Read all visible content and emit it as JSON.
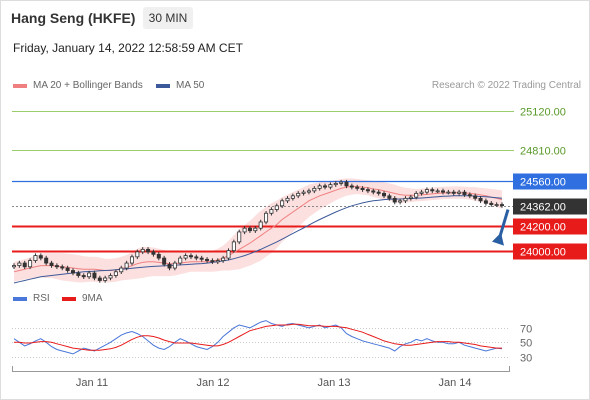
{
  "header": {
    "title": "Hang Seng (HKFE)",
    "interval": "30 MIN",
    "datetime": "Friday, January 14, 2022 12:58:59 AM CET",
    "credit": "Research © 2022 Trading Central"
  },
  "legend": {
    "ma20_bb": "MA 20 + Bollinger Bands",
    "ma50": "MA 50",
    "rsi": "RSI",
    "rsi_ma": "9MA"
  },
  "colors": {
    "ma20": "#f08080",
    "ma50": "#3c5a99",
    "band_fill": "#fbd7d7",
    "resistance_green": "#9acd6e",
    "resistance_blue": "#2f6fe0",
    "support_red": "#e81b1b",
    "current_tag": "#333333",
    "arrow": "#2b5fa3",
    "rsi": "#4a77d9",
    "rsi_ma": "#e81b1b"
  },
  "chart_data": [
    {
      "type": "candlestick",
      "x_labels": [
        "Jan 11",
        "Jan 12",
        "Jan 13",
        "Jan 14"
      ],
      "ylim": [
        23780,
        25210
      ],
      "levels": [
        {
          "value": 25120,
          "label": "25120.00",
          "style": "green"
        },
        {
          "value": 24810,
          "label": "24810.00",
          "style": "green"
        },
        {
          "value": 24560,
          "label": "24560.00",
          "style": "blue-tag"
        },
        {
          "value": 24362,
          "label": "24362.00",
          "style": "current-tag"
        },
        {
          "value": 24200,
          "label": "24200.00",
          "style": "red-tag"
        },
        {
          "value": 24000,
          "label": "24000.00",
          "style": "red-tag"
        }
      ],
      "close": [
        23880,
        23900,
        23870,
        23920,
        23960,
        23940,
        23900,
        23880,
        23870,
        23860,
        23840,
        23820,
        23800,
        23790,
        23820,
        23780,
        23760,
        23780,
        23800,
        23830,
        23860,
        23900,
        23950,
        23990,
        24010,
        23990,
        23970,
        23940,
        23890,
        23860,
        23900,
        23940,
        23960,
        23950,
        23940,
        23930,
        23920,
        23910,
        23920,
        23940,
        24000,
        24070,
        24150,
        24180,
        24160,
        24180,
        24230,
        24300,
        24330,
        24360,
        24400,
        24420,
        24440,
        24460,
        24470,
        24480,
        24500,
        24520,
        24510,
        24530,
        24540,
        24550,
        24520,
        24510,
        24500,
        24490,
        24480,
        24470,
        24460,
        24440,
        24420,
        24390,
        24400,
        24420,
        24430,
        24460,
        24470,
        24490,
        24480,
        24480,
        24470,
        24470,
        24460,
        24470,
        24450,
        24440,
        24420,
        24400,
        24380,
        24370,
        24370,
        24362
      ],
      "ma20": [
        23830,
        23840,
        23850,
        23860,
        23870,
        23880,
        23880,
        23880,
        23875,
        23870,
        23865,
        23860,
        23855,
        23850,
        23850,
        23850,
        23845,
        23840,
        23840,
        23845,
        23855,
        23865,
        23880,
        23895,
        23905,
        23910,
        23910,
        23905,
        23900,
        23895,
        23895,
        23900,
        23905,
        23910,
        23910,
        23910,
        23910,
        23915,
        23925,
        23940,
        23960,
        23985,
        24010,
        24035,
        24060,
        24090,
        24120,
        24150,
        24180,
        24210,
        24250,
        24280,
        24310,
        24340,
        24370,
        24400,
        24420,
        24440,
        24455,
        24470,
        24485,
        24500,
        24510,
        24515,
        24515,
        24510,
        24505,
        24495,
        24490,
        24480,
        24470,
        24460,
        24450,
        24445,
        24445,
        24445,
        24448,
        24452,
        24456,
        24460,
        24463,
        24465,
        24466,
        24466,
        24464,
        24460,
        24455,
        24448,
        24440,
        24430,
        24420,
        24410
      ],
      "ma50": [
        23740,
        23750,
        23760,
        23770,
        23780,
        23790,
        23795,
        23800,
        23805,
        23810,
        23815,
        23820,
        23825,
        23830,
        23832,
        23835,
        23838,
        23840,
        23843,
        23846,
        23850,
        23853,
        23858,
        23862,
        23866,
        23870,
        23873,
        23876,
        23878,
        23880,
        23882,
        23885,
        23888,
        23890,
        23893,
        23896,
        23900,
        23905,
        23910,
        23917,
        23925,
        23935,
        23947,
        23960,
        23975,
        23992,
        24010,
        24030,
        24050,
        24070,
        24092,
        24115,
        24138,
        24160,
        24182,
        24205,
        24228,
        24250,
        24270,
        24290,
        24310,
        24328,
        24345,
        24360,
        24372,
        24383,
        24393,
        24400,
        24405,
        24410,
        24412,
        24414,
        24415,
        24416,
        24418,
        24420,
        24423,
        24426,
        24430,
        24433,
        24436,
        24438,
        24440,
        24441,
        24441,
        24440,
        24438,
        24435,
        24432,
        24428,
        24424,
        24420
      ],
      "band_width": [
        80,
        80,
        80,
        85,
        90,
        95,
        100,
        100,
        105,
        110,
        110,
        110,
        110,
        105,
        100,
        100,
        100,
        95,
        95,
        95,
        95,
        100,
        110,
        120,
        125,
        120,
        115,
        110,
        105,
        100,
        95,
        90,
        85,
        80,
        80,
        80,
        80,
        85,
        90,
        100,
        120,
        140,
        160,
        170,
        180,
        190,
        200,
        200,
        200,
        190,
        180,
        170,
        160,
        150,
        140,
        130,
        120,
        110,
        100,
        90,
        80,
        75,
        70,
        65,
        60,
        60,
        60,
        65,
        70,
        70,
        70,
        70,
        65,
        60,
        55,
        50,
        50,
        50,
        50,
        50,
        50,
        50,
        50,
        50,
        50,
        50,
        55,
        55,
        60,
        65,
        70,
        75
      ],
      "arrow": {
        "from_value": 24330,
        "to_value": 24040
      }
    },
    {
      "type": "line",
      "name": "RSI",
      "x_labels": [
        "Jan 11",
        "Jan 12",
        "Jan 13",
        "Jan 14"
      ],
      "ylim": [
        20,
        85
      ],
      "y_ticks": [
        70,
        50,
        30
      ],
      "series": [
        {
          "name": "RSI",
          "values": [
            55,
            50,
            45,
            48,
            52,
            55,
            50,
            44,
            40,
            38,
            36,
            34,
            38,
            42,
            40,
            38,
            42,
            46,
            50,
            55,
            60,
            63,
            65,
            62,
            58,
            52,
            46,
            42,
            40,
            44,
            50,
            55,
            52,
            48,
            44,
            42,
            40,
            44,
            50,
            58,
            64,
            70,
            74,
            72,
            70,
            74,
            78,
            80,
            76,
            74,
            72,
            75,
            76,
            74,
            72,
            70,
            72,
            74,
            70,
            72,
            74,
            70,
            62,
            58,
            55,
            52,
            50,
            48,
            46,
            44,
            42,
            38,
            44,
            48,
            50,
            54,
            52,
            55,
            52,
            50,
            50,
            48,
            48,
            50,
            46,
            44,
            42,
            40,
            38,
            40,
            42,
            41
          ]
        },
        {
          "name": "9MA",
          "values": [
            50,
            50,
            49,
            49,
            50,
            51,
            51,
            50,
            48,
            46,
            44,
            42,
            41,
            40,
            39,
            39,
            39,
            40,
            41,
            43,
            46,
            50,
            54,
            57,
            59,
            59,
            58,
            56,
            53,
            51,
            49,
            49,
            49,
            49,
            48,
            47,
            46,
            45,
            45,
            47,
            50,
            54,
            58,
            62,
            66,
            68,
            70,
            72,
            73,
            74,
            74,
            74,
            75,
            75,
            74,
            73,
            73,
            73,
            72,
            72,
            72,
            71,
            70,
            68,
            66,
            64,
            61,
            58,
            55,
            52,
            50,
            48,
            47,
            46,
            46,
            47,
            48,
            49,
            50,
            51,
            51,
            51,
            50,
            50,
            49,
            48,
            47,
            45,
            44,
            43,
            42,
            42
          ]
        }
      ]
    }
  ]
}
